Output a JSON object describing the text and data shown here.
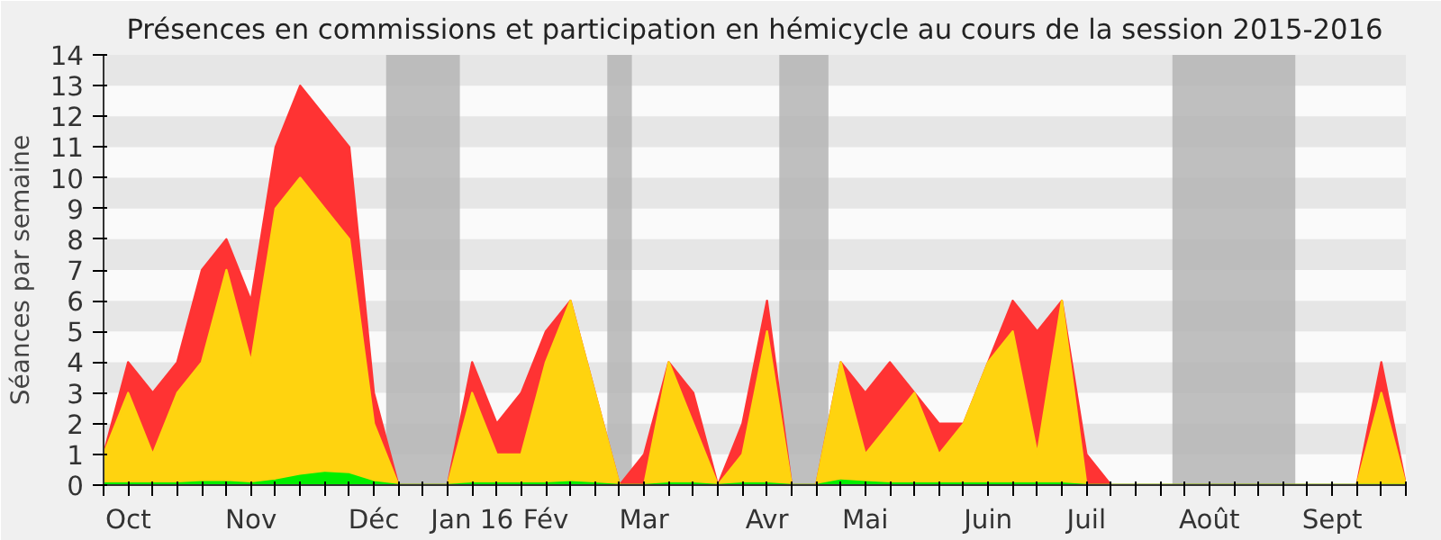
{
  "chart_data": {
    "type": "area",
    "title": "Présences en commissions et participation en hémicycle au cours de la session 2015-2016",
    "ylabel": "Séances par semaine",
    "categories": [
      null,
      "Oct",
      null,
      null,
      null,
      null,
      "Nov",
      null,
      null,
      null,
      null,
      "Déc",
      null,
      null,
      null,
      "Jan 16",
      null,
      null,
      "Fév",
      null,
      null,
      null,
      "Mar",
      null,
      null,
      null,
      null,
      "Avr",
      null,
      null,
      null,
      "Mai",
      null,
      null,
      null,
      null,
      "Juin",
      null,
      null,
      null,
      "Juil",
      null,
      null,
      null,
      null,
      "Août",
      null,
      null,
      null,
      null,
      "Sept",
      null,
      null,
      null
    ],
    "series": [
      {
        "color": "#ff3333",
        "values": [
          1,
          4,
          3,
          4,
          7,
          8,
          6,
          11,
          13,
          12,
          11,
          3,
          0,
          0,
          0,
          4,
          2,
          3,
          5,
          6,
          3,
          0,
          1,
          4,
          3,
          0,
          2,
          6,
          0,
          0,
          4,
          3,
          4,
          3,
          2,
          2,
          4,
          6,
          5,
          6,
          1,
          0,
          0,
          0,
          0,
          0,
          0,
          0,
          0,
          0,
          0,
          0,
          4,
          0
        ]
      },
      {
        "color": "#ffd30f",
        "values": [
          1,
          3,
          1,
          3,
          4,
          7,
          4,
          9,
          10,
          9,
          8,
          2,
          0,
          0,
          0,
          3,
          1,
          1,
          4,
          6,
          3,
          0,
          0,
          4,
          2,
          0,
          1,
          5,
          0,
          0,
          4,
          1,
          2,
          3,
          1,
          2,
          4,
          5,
          1,
          6,
          0,
          0,
          0,
          0,
          0,
          0,
          0,
          0,
          0,
          0,
          0,
          0,
          3,
          0
        ]
      },
      {
        "color": "#00ee00",
        "values": [
          0.05,
          0.05,
          0.05,
          0.05,
          0.1,
          0.1,
          0.05,
          0.15,
          0.3,
          0.4,
          0.35,
          0.1,
          0,
          0,
          0,
          0.05,
          0.05,
          0.05,
          0.05,
          0.1,
          0.05,
          0,
          0,
          0.05,
          0.05,
          0,
          0.05,
          0.05,
          0,
          0,
          0.15,
          0.1,
          0.05,
          0.05,
          0.05,
          0.05,
          0.05,
          0.05,
          0.05,
          0.05,
          0,
          0,
          0,
          0,
          0,
          0,
          0,
          0,
          0,
          0,
          0,
          0,
          0,
          0
        ]
      }
    ],
    "ylim": [
      0,
      14
    ],
    "yticks": [
      0,
      1,
      2,
      3,
      4,
      5,
      6,
      7,
      8,
      9,
      10,
      11,
      12,
      13,
      14
    ]
  }
}
